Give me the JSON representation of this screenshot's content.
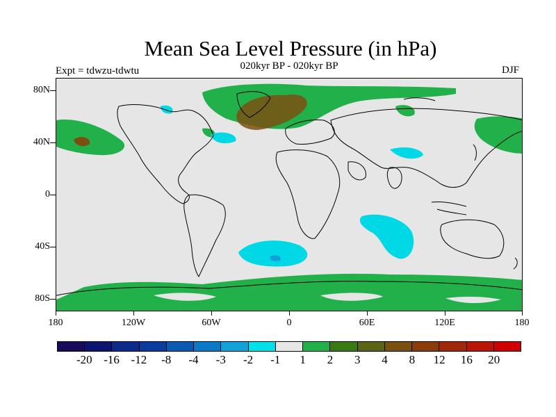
{
  "title": "Mean Sea Level Pressure (in hPa)",
  "subtitle": "020kyr BP - 020kyr BP",
  "experiment": "Expt = tdwzu-tdwtu",
  "season": "DJF",
  "lat_labels": [
    "80N",
    "40N",
    "0",
    "40S",
    "80S"
  ],
  "lon_labels": [
    "180",
    "120W",
    "60W",
    "0",
    "60E",
    "120E",
    "180"
  ],
  "colorbar": {
    "colors": [
      "#1a0a5c",
      "#0d1470",
      "#0a2a8c",
      "#0a3ca0",
      "#0a5ab4",
      "#0a7ac8",
      "#14a0d8",
      "#00e0e8",
      "#e6e6e6",
      "#22b04a",
      "#3a7a14",
      "#5a6414",
      "#7a5010",
      "#8a3c0a",
      "#a0280a",
      "#b81408",
      "#d00000"
    ],
    "labels": [
      "-20",
      "-16",
      "-12",
      "-8",
      "-4",
      "-3",
      "-2",
      "-1",
      "1",
      "2",
      "3",
      "4",
      "8",
      "12",
      "16",
      "20"
    ]
  },
  "colors": {
    "background": "#e6e6e6",
    "positive_small": "#22b04a",
    "negative_small": "#00d8e6",
    "positive_large": "#7a5010"
  }
}
